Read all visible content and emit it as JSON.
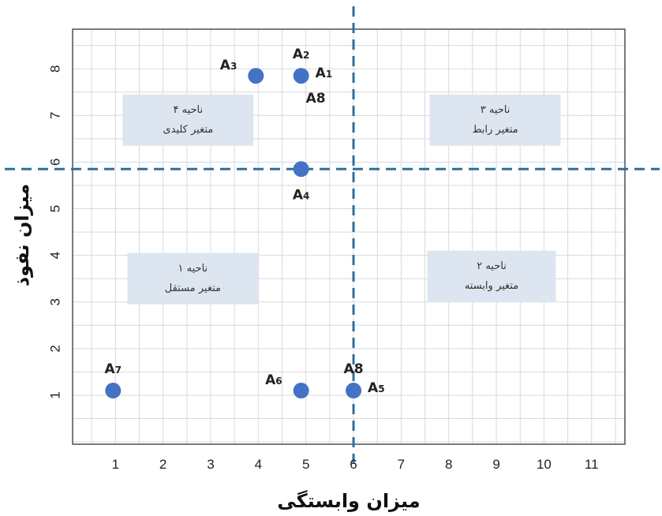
{
  "chart_data": {
    "type": "scatter",
    "xlabel": "میزان وابستگی",
    "ylabel": "میزان نفوذ",
    "xlim": [
      0.1,
      11.7
    ],
    "ylim": [
      -0.05,
      8.85
    ],
    "x_ticks": [
      1,
      2,
      3,
      4,
      5,
      6,
      7,
      8,
      9,
      10,
      11
    ],
    "y_ticks": [
      1,
      2,
      3,
      4,
      5,
      6,
      7,
      8
    ],
    "grid": true,
    "threshold_x": 6,
    "threshold_y": 5.85,
    "points": [
      {
        "x": 3.95,
        "y": 7.85,
        "label": "A",
        "sub": "3",
        "label_pos": "left"
      },
      {
        "x": 4.9,
        "y": 7.85,
        "label": "A",
        "sub": "1",
        "label_pos": "right"
      },
      {
        "x": 4.9,
        "y": 7.85,
        "label": "A",
        "sub": "2",
        "label_pos": "top"
      },
      {
        "x": 4.9,
        "y": 7.85,
        "label": "A8",
        "sub": "",
        "label_pos": "bottom-right"
      },
      {
        "x": 4.9,
        "y": 5.85,
        "label": "A",
        "sub": "4",
        "label_pos": "bottom"
      },
      {
        "x": 0.95,
        "y": 1.1,
        "label": "A",
        "sub": "7",
        "label_pos": "top"
      },
      {
        "x": 4.9,
        "y": 1.1,
        "label": "A",
        "sub": "6",
        "label_pos": "left"
      },
      {
        "x": 6.0,
        "y": 1.1,
        "label": "A8",
        "sub": "",
        "label_pos": "top"
      },
      {
        "x": 6.0,
        "y": 1.1,
        "label": "A",
        "sub": "5",
        "label_pos": "right"
      }
    ],
    "regions": [
      {
        "line1": "ناحیه ۴",
        "line2": "متغیر کلیدی",
        "x_range": [
          1.15,
          3.9
        ],
        "y_range": [
          6.35,
          7.45
        ]
      },
      {
        "line1": "ناحیه ۳",
        "line2": "متغیر رابط",
        "x_range": [
          7.6,
          10.35
        ],
        "y_range": [
          6.35,
          7.45
        ]
      },
      {
        "line1": "ناحیه ۱",
        "line2": "متغیر مستقل",
        "x_range": [
          1.25,
          4.0
        ],
        "y_range": [
          2.95,
          4.05
        ]
      },
      {
        "line1": "ناحیه ۲",
        "line2": "متغیر وابسته",
        "x_range": [
          7.55,
          10.25
        ],
        "y_range": [
          3.0,
          4.1
        ]
      }
    ],
    "colors": {
      "point": "#4472c4",
      "dashed_line": "#2f6f9c",
      "region_box": "#dde6f0",
      "grid": "#d9d9d9",
      "frame": "#595959"
    }
  }
}
